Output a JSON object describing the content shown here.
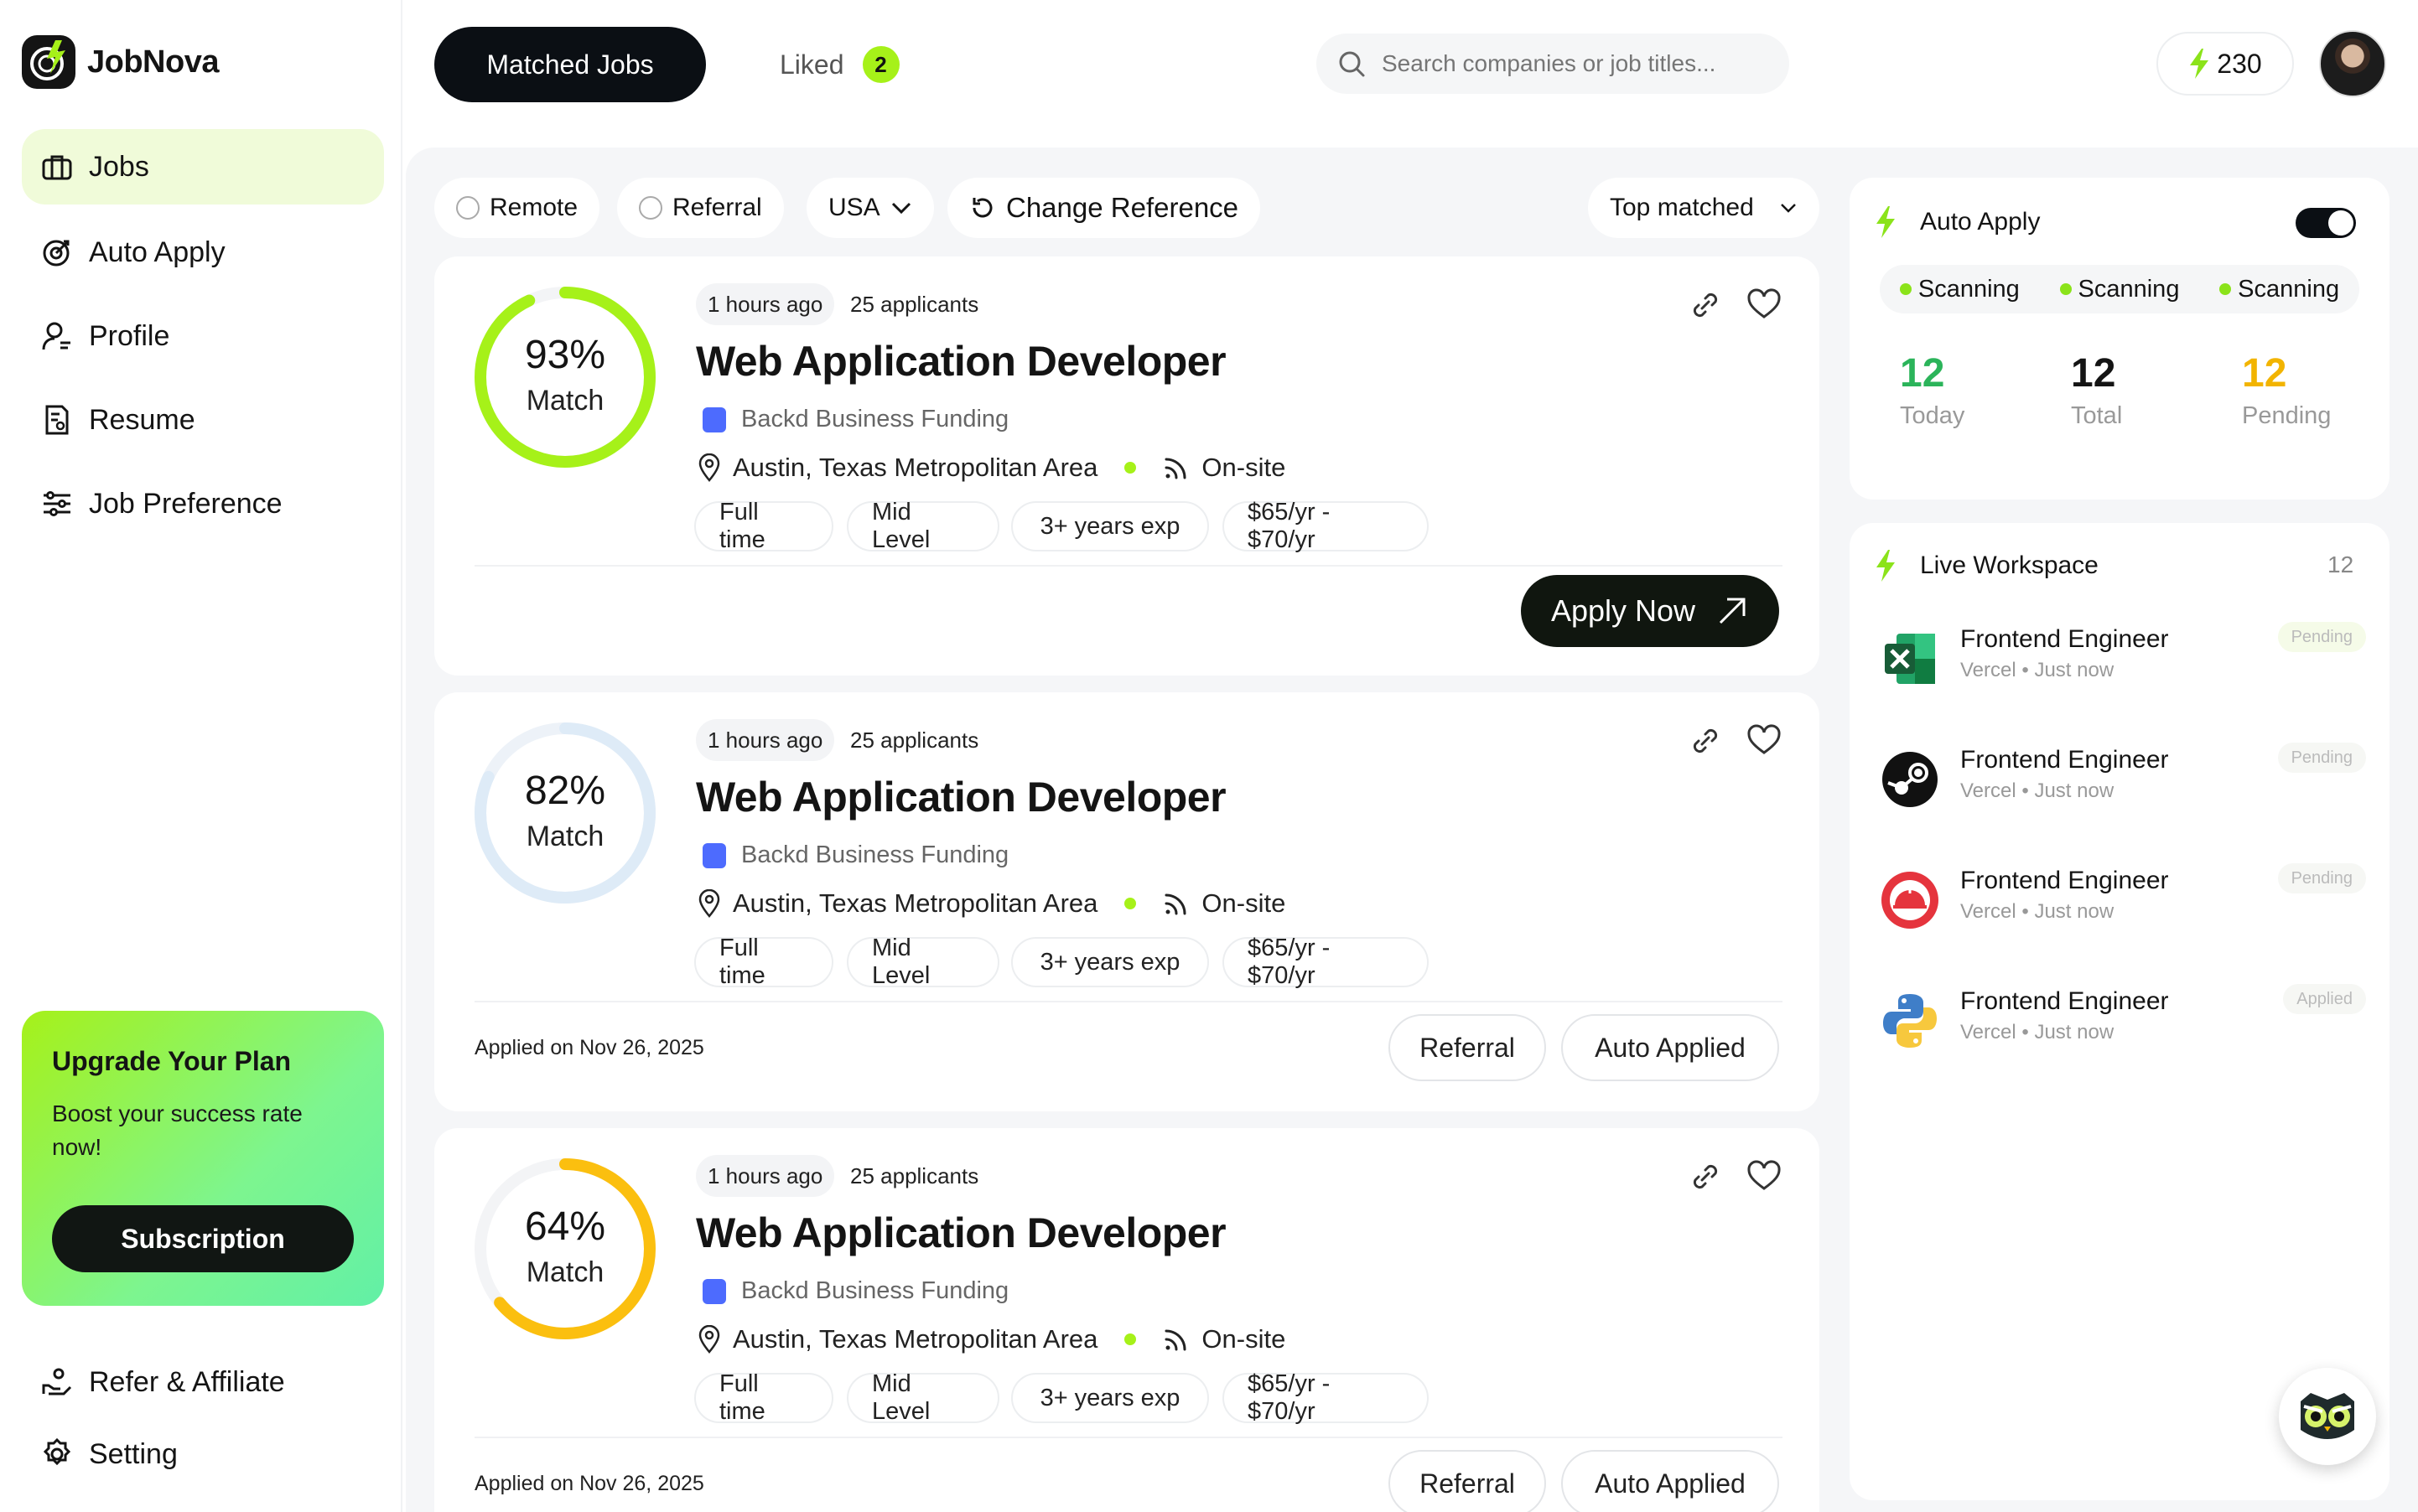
{
  "app": {
    "name": "JobNova"
  },
  "sidebar": {
    "items": [
      {
        "label": "Jobs",
        "icon": "briefcase-icon",
        "active": true
      },
      {
        "label": "Auto Apply",
        "icon": "target-icon"
      },
      {
        "label": "Profile",
        "icon": "user-icon"
      },
      {
        "label": "Resume",
        "icon": "resume-icon"
      },
      {
        "label": "Job Preference",
        "icon": "sliders-icon"
      }
    ],
    "upgrade": {
      "title": "Upgrade Your Plan",
      "text": "Boost your success rate now!",
      "button": "Subscription"
    },
    "bottom": [
      {
        "label": "Refer & Affiliate",
        "icon": "refer-icon"
      },
      {
        "label": "Setting",
        "icon": "gear-icon"
      }
    ]
  },
  "topbar": {
    "tab_matched": "Matched Jobs",
    "tab_liked": "Liked",
    "liked_count": "2",
    "search_placeholder": "Search companies or job titles...",
    "credits": "230"
  },
  "filters": {
    "remote": "Remote",
    "referral": "Referral",
    "country": "USA",
    "change_reference": "Change Reference",
    "sort": "Top matched"
  },
  "jobs": [
    {
      "match_pct": "93%",
      "match_value": 0.93,
      "match_label": "Match",
      "ring_color": "#a6f119",
      "posted": "1 hours ago",
      "applicants": "25 applicants",
      "title": "Web Application Developer",
      "company": "Backd Business Funding",
      "location": "Austin, Texas Metropolitan Area",
      "work_mode": "On-site",
      "tags": [
        "Full time",
        "Mid Level",
        "3+ years exp",
        "$65/yr - $70/yr"
      ],
      "action": "Apply Now"
    },
    {
      "match_pct": "82%",
      "match_value": 0.82,
      "match_label": "Match",
      "ring_color": "#deebf7",
      "posted": "1 hours ago",
      "applicants": "25 applicants",
      "title": "Web Application Developer",
      "company": "Backd Business Funding",
      "location": "Austin, Texas Metropolitan Area",
      "work_mode": "On-site",
      "tags": [
        "Full time",
        "Mid Level",
        "3+ years exp",
        "$65/yr - $70/yr"
      ],
      "applied_on": "Applied on Nov 26, 2025",
      "btn_referral": "Referral",
      "btn_auto": "Auto Applied"
    },
    {
      "match_pct": "64%",
      "match_value": 0.64,
      "match_label": "Match",
      "ring_color": "#fbbf0f",
      "posted": "1 hours ago",
      "applicants": "25 applicants",
      "title": "Web Application Developer",
      "company": "Backd Business Funding",
      "location": "Austin, Texas Metropolitan Area",
      "work_mode": "On-site",
      "tags": [
        "Full time",
        "Mid Level",
        "3+ years exp",
        "$65/yr - $70/yr"
      ],
      "applied_on": "Applied on Nov 26, 2025",
      "btn_referral": "Referral",
      "btn_auto": "Auto Applied"
    }
  ],
  "auto_apply": {
    "title": "Auto Apply",
    "enabled": true,
    "scanning": [
      "Scanning",
      "Scanning",
      "Scanning"
    ],
    "stats": [
      {
        "value": "12",
        "label": "Today",
        "color": "#2bb45a"
      },
      {
        "value": "12",
        "label": "Total",
        "color": "#141414"
      },
      {
        "value": "12",
        "label": "Pending",
        "color": "#f2b400"
      }
    ]
  },
  "workspace": {
    "title": "Live Workspace",
    "count": "12",
    "items": [
      {
        "title": "Frontend Engineer",
        "company": "Vercel",
        "time": "Just now",
        "status": "Pending",
        "logo": "excel-icon"
      },
      {
        "title": "Frontend Engineer",
        "company": "Vercel",
        "time": "Just now",
        "status": "Pending",
        "logo": "steam-icon"
      },
      {
        "title": "Frontend Engineer",
        "company": "Vercel",
        "time": "Just now",
        "status": "Pending",
        "logo": "red-dome-icon"
      },
      {
        "title": "Frontend Engineer",
        "company": "Vercel",
        "time": "Just now",
        "status": "Applied",
        "logo": "python-icon"
      }
    ]
  }
}
